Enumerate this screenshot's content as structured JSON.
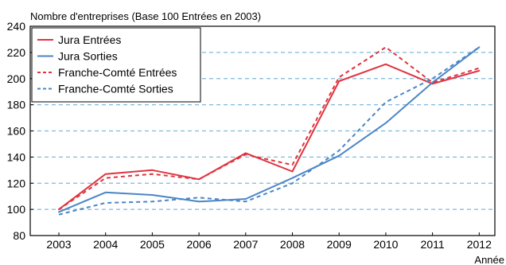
{
  "chart_data": {
    "type": "line",
    "title": "",
    "ylabel": "Nombre d'entreprises (Base 100 Entrées en 2003)",
    "xlabel": "Année",
    "x": [
      "2003",
      "2004",
      "2005",
      "2006",
      "2007",
      "2008",
      "2009",
      "2010",
      "2011",
      "2012"
    ],
    "ylim": [
      80,
      240
    ],
    "yticks": [
      80,
      100,
      120,
      140,
      160,
      180,
      200,
      220,
      240
    ],
    "grid": "horizontal dashed",
    "legend_position": "top-left",
    "series": [
      {
        "name": "Jura Entrées",
        "color": "#e0343f",
        "style": "solid",
        "values": [
          100,
          127,
          130,
          123,
          143,
          129,
          198,
          211,
          196,
          206
        ]
      },
      {
        "name": "Jura Sorties",
        "color": "#4a86c6",
        "style": "solid",
        "values": [
          98,
          113,
          111,
          106,
          108,
          124,
          141,
          166,
          197,
          224
        ]
      },
      {
        "name": "Franche-Comté Entrées",
        "color": "#e0343f",
        "style": "dashed",
        "values": [
          100,
          124,
          127,
          123,
          142,
          134,
          201,
          224,
          197,
          208
        ]
      },
      {
        "name": "Franche-Comté Sorties",
        "color": "#4a86c6",
        "style": "dashed",
        "values": [
          96,
          105,
          106,
          109,
          106,
          120,
          145,
          182,
          200,
          224
        ]
      }
    ]
  }
}
